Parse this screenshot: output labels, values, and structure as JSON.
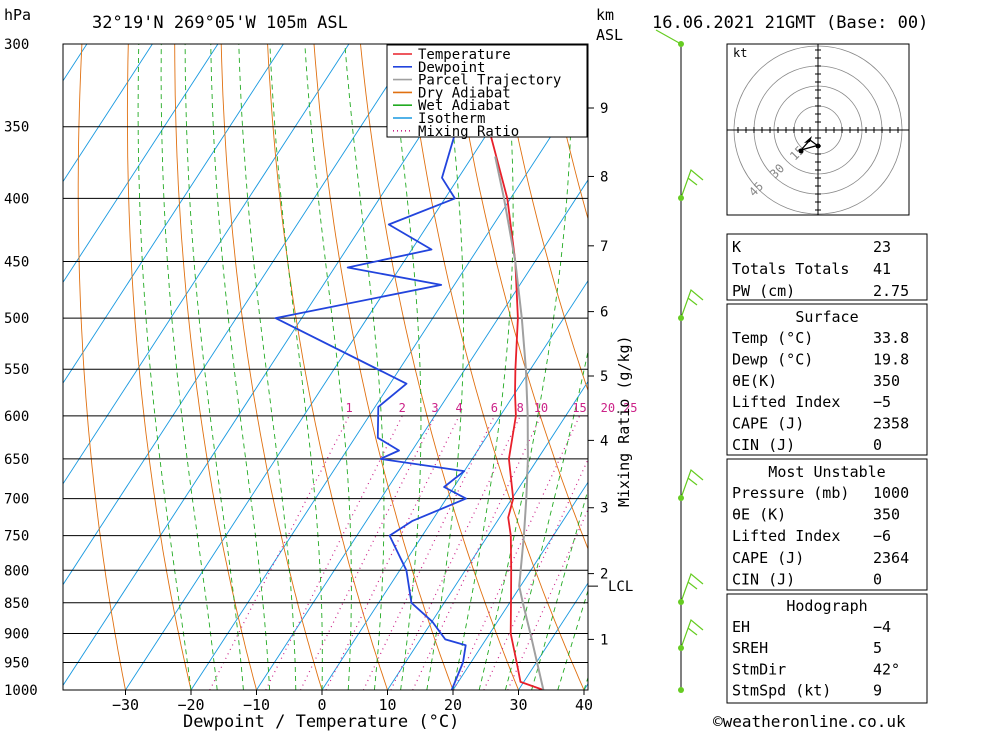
{
  "header": {
    "pressure_unit": "hPa",
    "location": "32°19'N 269°05'W 105m ASL",
    "height_unit_1": "km",
    "height_unit_2": "ASL",
    "datetime": "16.06.2021 21GMT (Base: 00)"
  },
  "chart_data": {
    "type": "line",
    "subtype": "skew-T log-p diagram",
    "xlabel": "Dewpoint / Temperature (°C)",
    "ylabel_left": "hPa",
    "ylabel_right": "Mixing Ratio (g/kg)",
    "xlim": [
      -40,
      40
    ],
    "ylim": [
      1000,
      300
    ],
    "y_scale": "log",
    "x_ticks": [
      -30,
      -20,
      -10,
      0,
      10,
      20,
      30,
      40
    ],
    "pressure_levels": [
      300,
      350,
      400,
      450,
      500,
      550,
      600,
      650,
      700,
      750,
      800,
      850,
      900,
      950,
      1000
    ],
    "km_ticks": [
      {
        "km": "1",
        "p": 910
      },
      {
        "km": "2",
        "p": 805
      },
      {
        "km": "3",
        "p": 712
      },
      {
        "km": "4",
        "p": 628
      },
      {
        "km": "5",
        "p": 557
      },
      {
        "km": "6",
        "p": 494
      },
      {
        "km": "7",
        "p": 437
      },
      {
        "km": "8",
        "p": 384
      },
      {
        "km": "9",
        "p": 338
      }
    ],
    "lcl": {
      "label": "LCL",
      "p": 824
    },
    "mixing_ratio_labels": [
      "1",
      "2",
      "3",
      "4",
      "6",
      "8",
      "10",
      "15",
      "20",
      "25"
    ],
    "legend": {
      "position": "top-right",
      "entries": [
        {
          "name": "Temperature",
          "color": "#e8202a"
        },
        {
          "name": "Dewpoint",
          "color": "#2244dd"
        },
        {
          "name": "Parcel Trajectory",
          "color": "#a0a0a0"
        },
        {
          "name": "Dry Adiabat",
          "color": "#e07010"
        },
        {
          "name": "Wet Adiabat",
          "color": "#22aa22"
        },
        {
          "name": "Isotherm",
          "color": "#1899e0"
        },
        {
          "name": "Mixing Ratio",
          "color": "#cc2288"
        }
      ]
    },
    "series": [
      {
        "name": "Temperature",
        "color": "#e8202a",
        "points": [
          [
            1000,
            33.8
          ],
          [
            985,
            29.5
          ],
          [
            950,
            27.0
          ],
          [
            900,
            23.2
          ],
          [
            850,
            20.2
          ],
          [
            800,
            17.0
          ],
          [
            750,
            13.5
          ],
          [
            725,
            11.3
          ],
          [
            700,
            10.2
          ],
          [
            650,
            5.6
          ],
          [
            600,
            2.4
          ],
          [
            575,
            0.0
          ],
          [
            550,
            -2.3
          ],
          [
            500,
            -7.0
          ],
          [
            450,
            -13.0
          ],
          [
            400,
            -20.5
          ],
          [
            350,
            -30.5
          ],
          [
            330,
            -34.5
          ],
          [
            300,
            -40.5
          ]
        ]
      },
      {
        "name": "Dewpoint",
        "color": "#2244dd",
        "points": [
          [
            1000,
            19.8
          ],
          [
            950,
            18.8
          ],
          [
            920,
            17.5
          ],
          [
            910,
            13.8
          ],
          [
            880,
            10.0
          ],
          [
            850,
            5.0
          ],
          [
            800,
            1.0
          ],
          [
            750,
            -5.0
          ],
          [
            730,
            -3.0
          ],
          [
            700,
            3.0
          ],
          [
            685,
            -1.5
          ],
          [
            665,
            0.0
          ],
          [
            650,
            -14.0
          ],
          [
            640,
            -12.0
          ],
          [
            625,
            -16.5
          ],
          [
            590,
            -19.5
          ],
          [
            565,
            -17.5
          ],
          [
            500,
            -44.0
          ],
          [
            470,
            -22.0
          ],
          [
            455,
            -38.0
          ],
          [
            440,
            -27.0
          ],
          [
            420,
            -36.0
          ],
          [
            400,
            -28.5
          ],
          [
            385,
            -32.5
          ],
          [
            330,
            -37.0
          ],
          [
            325,
            -27.0
          ],
          [
            310,
            -28.5
          ],
          [
            300,
            -31.5
          ]
        ]
      },
      {
        "name": "Parcel Trajectory",
        "color": "#a0a0a0",
        "points": [
          [
            1000,
            33.8
          ],
          [
            900,
            26.2
          ],
          [
            850,
            22.0
          ],
          [
            824,
            19.8
          ],
          [
            750,
            15.5
          ],
          [
            700,
            12.2
          ],
          [
            650,
            8.5
          ],
          [
            600,
            4.2
          ],
          [
            550,
            -0.7
          ],
          [
            500,
            -6.4
          ],
          [
            450,
            -13.0
          ],
          [
            400,
            -21.0
          ],
          [
            370,
            -26.5
          ]
        ]
      }
    ]
  },
  "hodograph": {
    "unit": "kt",
    "ring_labels": [
      "15",
      "30",
      "45"
    ]
  },
  "indices": {
    "rows": [
      {
        "label": "K",
        "value": "23"
      },
      {
        "label": "Totals Totals",
        "value": "41"
      },
      {
        "label": "PW (cm)",
        "value": "2.75"
      }
    ],
    "surface": {
      "title": "Surface",
      "rows": [
        {
          "label": "Temp (°C)",
          "value": "33.8"
        },
        {
          "label": "Dewp (°C)",
          "value": "19.8"
        },
        {
          "label": "θE(K)",
          "value": "350"
        },
        {
          "label": "Lifted Index",
          "value": "-5"
        },
        {
          "label": "CAPE (J)",
          "value": "2358"
        },
        {
          "label": "CIN (J)",
          "value": "0"
        }
      ]
    },
    "most_unstable": {
      "title": "Most Unstable",
      "rows": [
        {
          "label": "Pressure (mb)",
          "value": "1000"
        },
        {
          "label": "θE (K)",
          "value": "350"
        },
        {
          "label": "Lifted Index",
          "value": "-6"
        },
        {
          "label": "CAPE (J)",
          "value": "2364"
        },
        {
          "label": "CIN (J)",
          "value": "0"
        }
      ]
    },
    "hodograph_block": {
      "title": "Hodograph",
      "rows": [
        {
          "label": "EH",
          "value": "-4"
        },
        {
          "label": "SREH",
          "value": "5"
        },
        {
          "label": "StmDir",
          "value": "42°"
        },
        {
          "label": "StmSpd (kt)",
          "value": "9"
        }
      ]
    }
  },
  "footer": {
    "copyright": "©weatheronline.co.uk"
  }
}
